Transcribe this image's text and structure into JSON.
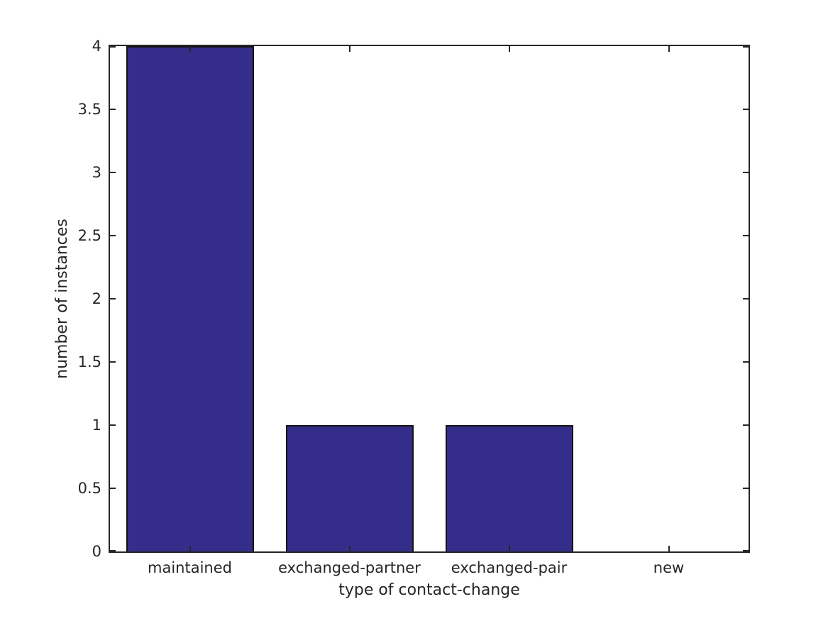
{
  "figure": {
    "background_color": "#ffffff",
    "text_color": "#262626",
    "axis_color": "#262626"
  },
  "chart_data": {
    "type": "bar",
    "title": "",
    "xlabel": "type of contact-change",
    "ylabel": "number of instances",
    "categories": [
      "maintained",
      "exchanged-partner",
      "exchanged-pair",
      "new"
    ],
    "values": [
      4,
      1,
      1,
      0
    ],
    "ylim": [
      0,
      4
    ],
    "yticks": [
      0,
      0.5,
      1,
      1.5,
      2,
      2.5,
      3,
      3.5,
      4
    ],
    "ytick_labels": [
      "0",
      "0.5",
      "1",
      "1.5",
      "2",
      "2.5",
      "3",
      "3.5",
      "4"
    ],
    "bar_color": "#352d8a",
    "bar_edge_color": "#141414",
    "bar_width_fraction": 0.8,
    "grid": false,
    "legend": null,
    "box": true,
    "tick_direction": "in"
  }
}
